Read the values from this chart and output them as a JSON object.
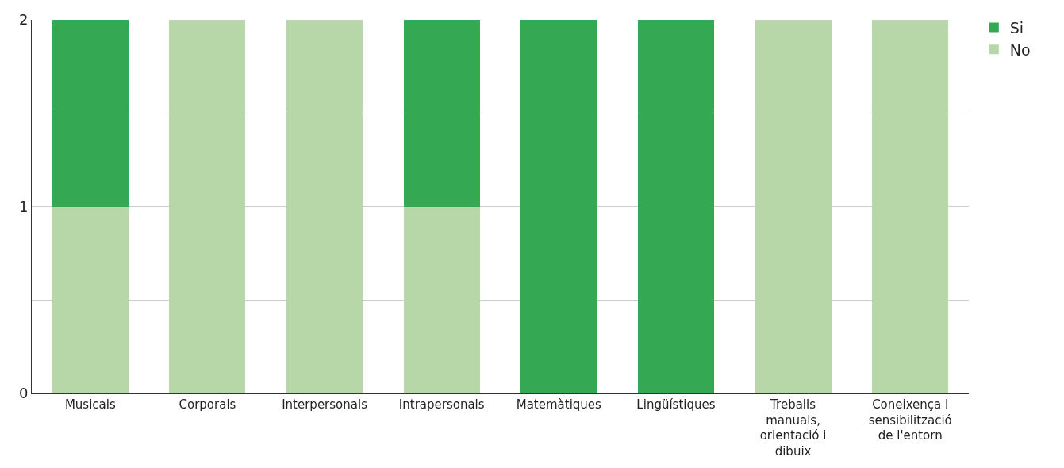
{
  "chart_data": {
    "type": "bar",
    "stacked": true,
    "categories": [
      "Musicals",
      "Corporals",
      "Interpersonals",
      "Intrapersonals",
      "Matemàtiques",
      "Lingüístiques",
      "Treballs manuals, orientació i dibuix",
      "Coneixença i sensibilització de l'entorn"
    ],
    "series": [
      {
        "name": "No",
        "color": "#b7d7a8",
        "values": [
          1,
          2,
          2,
          1,
          0,
          0,
          2,
          2
        ]
      },
      {
        "name": "Si",
        "color": "#34a853",
        "values": [
          1,
          0,
          0,
          1,
          2,
          2,
          0,
          0
        ]
      }
    ],
    "ylim": [
      0,
      2
    ],
    "yticks": [
      0,
      {
        "value": 0.5,
        "label": null
      },
      1,
      {
        "value": 1.5,
        "label": null
      },
      2
    ],
    "grid": "y",
    "legend": "top right"
  }
}
